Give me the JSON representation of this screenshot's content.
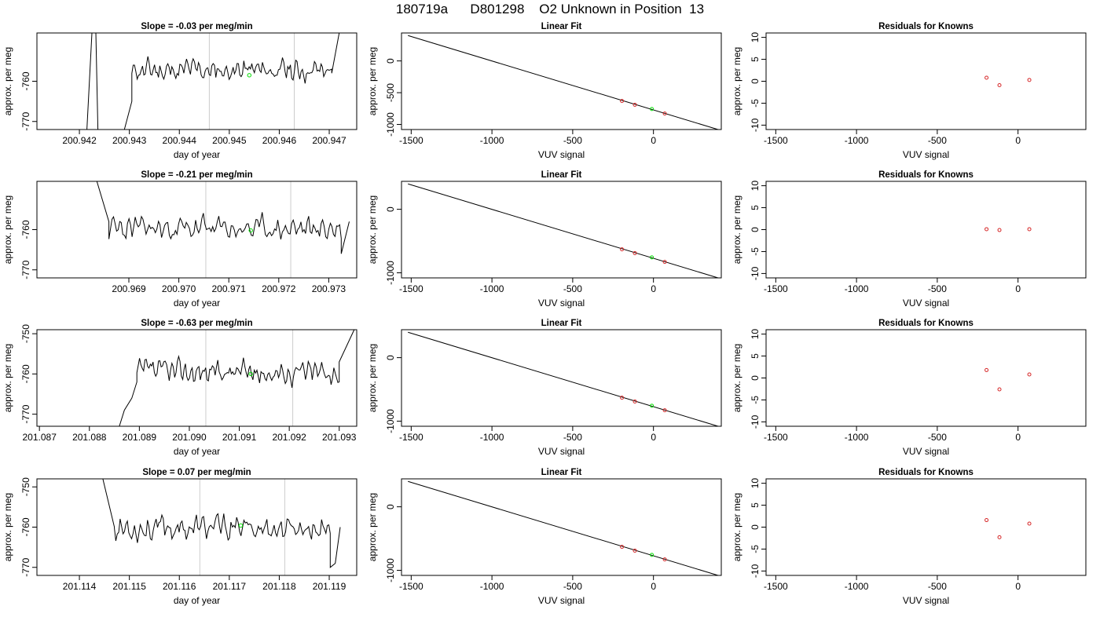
{
  "figure": {
    "title": "180719a      D801298    O2 Unknown in Position  13"
  },
  "colors": {
    "trace": "#000000",
    "vline": "#cccccc",
    "known": "#d62728",
    "unknown": "#00dd00",
    "frame": "#000000"
  },
  "chart_data": [
    {
      "type": "line",
      "row": 0,
      "panel": "timeseries",
      "title": "Slope =  -0.03  per meg/min",
      "xlabel": "day of year",
      "ylabel": "approx. per meg",
      "xlim": [
        200.94115,
        200.94755
      ],
      "ylim": [
        -772,
        -748
      ],
      "xticks": [
        200.942,
        200.943,
        200.944,
        200.945,
        200.946,
        200.947
      ],
      "xtick_labels": [
        "200.942",
        "200.943",
        "200.944",
        "200.945",
        "200.946",
        "200.947"
      ],
      "yticks": [
        -770,
        -760
      ],
      "ytick_labels": [
        "-770",
        "-760"
      ],
      "vlines": [
        200.9446,
        200.9463
      ],
      "trace": {
        "start": 200.9422,
        "end": 200.9472,
        "flat_start": 200.94305,
        "flat_end": 200.94705,
        "mean": -757.3,
        "amp": 2.1,
        "seed": 11,
        "shape": [
          [
            200.94215,
            -772
          ],
          [
            200.94225,
            -748
          ],
          [
            200.94233,
            -748
          ],
          [
            200.94237,
            -772
          ],
          [
            200.9429,
            -772
          ],
          [
            200.94305,
            -765
          ]
        ],
        "tail": [
          [
            200.94705,
            -758
          ],
          [
            200.9472,
            -748
          ]
        ]
      },
      "unknown": [
        200.9454,
        -758.5
      ],
      "grid": false
    },
    {
      "type": "scatter",
      "row": 0,
      "panel": "fit",
      "title": "Linear Fit",
      "xlabel": "VUV signal",
      "ylabel": "approx. per meg",
      "xlim": [
        -1560,
        420
      ],
      "ylim": [
        -1080,
        440
      ],
      "xticks": [
        -1500,
        -1000,
        -500,
        0
      ],
      "xtick_labels": [
        "-1500",
        "-1000",
        "-500",
        "0"
      ],
      "yticks": [
        -1000,
        -500,
        0
      ],
      "ytick_labels": [
        "-1000",
        "-500",
        "0"
      ],
      "line": {
        "x": [
          -1520,
          400
        ],
        "y": [
          400,
          -1080
        ]
      },
      "knowns": {
        "x": [
          -195,
          -115,
          70
        ],
        "y": [
          -630,
          -690,
          -828
        ]
      },
      "unknown": {
        "x": [
          -10
        ],
        "y": [
          -757
        ]
      },
      "grid": false
    },
    {
      "type": "scatter",
      "row": 0,
      "panel": "residuals",
      "title": "Residuals for Knowns",
      "xlabel": "VUV signal",
      "ylabel": "approx. per meg",
      "xlim": [
        -1560,
        420
      ],
      "ylim": [
        -11,
        11
      ],
      "xticks": [
        -1500,
        -1000,
        -500,
        0
      ],
      "xtick_labels": [
        "-1500",
        "-1000",
        "-500",
        "0"
      ],
      "yticks": [
        -10,
        -5,
        0,
        5,
        10
      ],
      "ytick_labels": [
        "-10",
        "-5",
        "0",
        "5",
        "10"
      ],
      "points": {
        "x": [
          -195,
          -115,
          70
        ],
        "y": [
          0.8,
          -0.9,
          0.3
        ]
      },
      "grid": false
    },
    {
      "type": "line",
      "row": 1,
      "panel": "timeseries",
      "title": "Slope =  -0.21  per meg/min",
      "xlabel": "day of year",
      "ylabel": "approx. per meg",
      "xlim": [
        200.96716,
        200.97356
      ],
      "ylim": [
        -772,
        -748
      ],
      "xticks": [
        200.969,
        200.97,
        200.971,
        200.972,
        200.973
      ],
      "xtick_labels": [
        "200.969",
        "200.970",
        "200.971",
        "200.972",
        "200.973"
      ],
      "yticks": [
        -770,
        -760
      ],
      "ytick_labels": [
        "-770",
        "-760"
      ],
      "vlines": [
        200.97054,
        200.97224
      ],
      "trace": {
        "start": 200.96836,
        "end": 200.97341,
        "flat_start": 200.9686,
        "flat_end": 200.97325,
        "mean": -759.8,
        "amp": 2.3,
        "seed": 23,
        "shape": [
          [
            200.96836,
            -748
          ],
          [
            200.9686,
            -758
          ]
        ],
        "tail": [
          [
            200.97325,
            -766
          ],
          [
            200.97341,
            -758
          ]
        ]
      },
      "unknown": [
        200.97144,
        -760.2
      ],
      "grid": false
    },
    {
      "type": "scatter",
      "row": 1,
      "panel": "fit",
      "title": "Linear Fit",
      "xlabel": "VUV signal",
      "ylabel": "approx. per meg",
      "xlim": [
        -1560,
        420
      ],
      "ylim": [
        -1080,
        440
      ],
      "xticks": [
        -1500,
        -1000,
        -500,
        0
      ],
      "xtick_labels": [
        "-1500",
        "-1000",
        "-500",
        "0"
      ],
      "yticks": [
        -1000,
        0
      ],
      "ytick_labels": [
        "-1000",
        "0"
      ],
      "line": {
        "x": [
          -1520,
          400
        ],
        "y": [
          400,
          -1080
        ]
      },
      "knowns": {
        "x": [
          -195,
          -115,
          70
        ],
        "y": [
          -630,
          -690,
          -828
        ]
      },
      "unknown": {
        "x": [
          -10
        ],
        "y": [
          -757
        ]
      },
      "grid": false
    },
    {
      "type": "scatter",
      "row": 1,
      "panel": "residuals",
      "title": "Residuals for Knowns",
      "xlabel": "VUV signal",
      "ylabel": "approx. per meg",
      "xlim": [
        -1560,
        420
      ],
      "ylim": [
        -11,
        11
      ],
      "xticks": [
        -1500,
        -1000,
        -500,
        0
      ],
      "xtick_labels": [
        "-1500",
        "-1000",
        "-500",
        "0"
      ],
      "yticks": [
        -10,
        -5,
        0,
        5,
        10
      ],
      "ytick_labels": [
        "-10",
        "-5",
        "0",
        "5",
        "10"
      ],
      "points": {
        "x": [
          -195,
          -115,
          70
        ],
        "y": [
          0.1,
          -0.1,
          0.1
        ]
      },
      "grid": false
    },
    {
      "type": "line",
      "row": 2,
      "panel": "timeseries",
      "title": "Slope =  -0.63  per meg/min",
      "xlabel": "day of year",
      "ylabel": "approx. per meg",
      "xlim": [
        201.08695,
        201.09335
      ],
      "ylim": [
        -773,
        -749
      ],
      "xticks": [
        201.087,
        201.088,
        201.089,
        201.09,
        201.091,
        201.092,
        201.093
      ],
      "xtick_labels": [
        "201.087",
        "201.088",
        "201.089",
        "201.090",
        "201.091",
        "201.092",
        "201.093"
      ],
      "yticks": [
        -770,
        -760,
        -750
      ],
      "ytick_labels": [
        "-770",
        "-760",
        "-750"
      ],
      "vlines": [
        201.09033,
        201.09207
      ],
      "trace": {
        "start": 201.0886,
        "end": 201.0933,
        "flat_start": 201.08895,
        "flat_end": 201.093,
        "mean": -759.5,
        "amp": 2.2,
        "seed": 37,
        "shape": [
          [
            201.0886,
            -773
          ],
          [
            201.0887,
            -769
          ],
          [
            201.08885,
            -766
          ],
          [
            201.08895,
            -762
          ]
        ],
        "tail": [
          [
            201.093,
            -757
          ],
          [
            201.0933,
            -749
          ]
        ]
      },
      "unknown": [
        201.09123,
        -760.0
      ],
      "grid": false
    },
    {
      "type": "scatter",
      "row": 2,
      "panel": "fit",
      "title": "Linear Fit",
      "xlabel": "VUV signal",
      "ylabel": "approx. per meg",
      "xlim": [
        -1560,
        420
      ],
      "ylim": [
        -1080,
        440
      ],
      "xticks": [
        -1500,
        -1000,
        -500,
        0
      ],
      "xtick_labels": [
        "-1500",
        "-1000",
        "-500",
        "0"
      ],
      "yticks": [
        -1000,
        0
      ],
      "ytick_labels": [
        "-1000",
        "0"
      ],
      "line": {
        "x": [
          -1520,
          400
        ],
        "y": [
          400,
          -1080
        ]
      },
      "knowns": {
        "x": [
          -195,
          -115,
          70
        ],
        "y": [
          -630,
          -690,
          -828
        ]
      },
      "unknown": {
        "x": [
          -10
        ],
        "y": [
          -757
        ]
      },
      "grid": false
    },
    {
      "type": "scatter",
      "row": 2,
      "panel": "residuals",
      "title": "Residuals for Knowns",
      "xlabel": "VUV signal",
      "ylabel": "approx. per meg",
      "xlim": [
        -1560,
        420
      ],
      "ylim": [
        -11,
        11
      ],
      "xticks": [
        -1500,
        -1000,
        -500,
        0
      ],
      "xtick_labels": [
        "-1500",
        "-1000",
        "-500",
        "0"
      ],
      "yticks": [
        -10,
        -5,
        0,
        5,
        10
      ],
      "ytick_labels": [
        "-10",
        "-5",
        "0",
        "5",
        "10"
      ],
      "points": {
        "x": [
          -195,
          -115,
          70
        ],
        "y": [
          1.8,
          -2.6,
          0.8
        ]
      },
      "grid": false
    },
    {
      "type": "line",
      "row": 3,
      "panel": "timeseries",
      "title": "Slope =  0.07  per meg/min",
      "xlabel": "day of year",
      "ylabel": "approx. per meg",
      "xlim": [
        201.11315,
        201.11955
      ],
      "ylim": [
        -772,
        -748
      ],
      "xticks": [
        201.114,
        201.115,
        201.116,
        201.117,
        201.118,
        201.119
      ],
      "xtick_labels": [
        "201.114",
        "201.115",
        "201.116",
        "201.117",
        "201.118",
        "201.119"
      ],
      "yticks": [
        -770,
        -760,
        -750
      ],
      "ytick_labels": [
        "-770",
        "-760",
        "-750"
      ],
      "vlines": [
        201.11641,
        201.11811
      ],
      "trace": {
        "start": 201.11447,
        "end": 201.11922,
        "flat_start": 201.1147,
        "flat_end": 201.11902,
        "mean": -760.2,
        "amp": 2.3,
        "seed": 53,
        "shape": [
          [
            201.11447,
            -748
          ],
          [
            201.1147,
            -760
          ]
        ],
        "tail": [
          [
            201.11902,
            -770
          ],
          [
            201.11912,
            -769
          ],
          [
            201.11922,
            -760
          ]
        ]
      },
      "unknown": [
        201.11723,
        -759.6
      ],
      "grid": false
    },
    {
      "type": "scatter",
      "row": 3,
      "panel": "fit",
      "title": "Linear Fit",
      "xlabel": "VUV signal",
      "ylabel": "approx. per meg",
      "xlim": [
        -1560,
        420
      ],
      "ylim": [
        -1080,
        440
      ],
      "xticks": [
        -1500,
        -1000,
        -500,
        0
      ],
      "xtick_labels": [
        "-1500",
        "-1000",
        "-500",
        "0"
      ],
      "yticks": [
        -1000,
        0
      ],
      "ytick_labels": [
        "-1000",
        "0"
      ],
      "line": {
        "x": [
          -1520,
          400
        ],
        "y": [
          400,
          -1080
        ]
      },
      "knowns": {
        "x": [
          -195,
          -115,
          70
        ],
        "y": [
          -630,
          -690,
          -828
        ]
      },
      "unknown": {
        "x": [
          -10
        ],
        "y": [
          -757
        ]
      },
      "grid": false
    },
    {
      "type": "scatter",
      "row": 3,
      "panel": "residuals",
      "title": "Residuals for Knowns",
      "xlabel": "VUV signal",
      "ylabel": "approx. per meg",
      "xlim": [
        -1560,
        420
      ],
      "ylim": [
        -11,
        11
      ],
      "xticks": [
        -1500,
        -1000,
        -500,
        0
      ],
      "xtick_labels": [
        "-1500",
        "-1000",
        "-500",
        "0"
      ],
      "yticks": [
        -10,
        -5,
        0,
        5,
        10
      ],
      "ytick_labels": [
        "-10",
        "-5",
        "0",
        "5",
        "10"
      ],
      "points": {
        "x": [
          -195,
          -115,
          70
        ],
        "y": [
          1.6,
          -2.3,
          0.8
        ]
      },
      "grid": false
    }
  ]
}
